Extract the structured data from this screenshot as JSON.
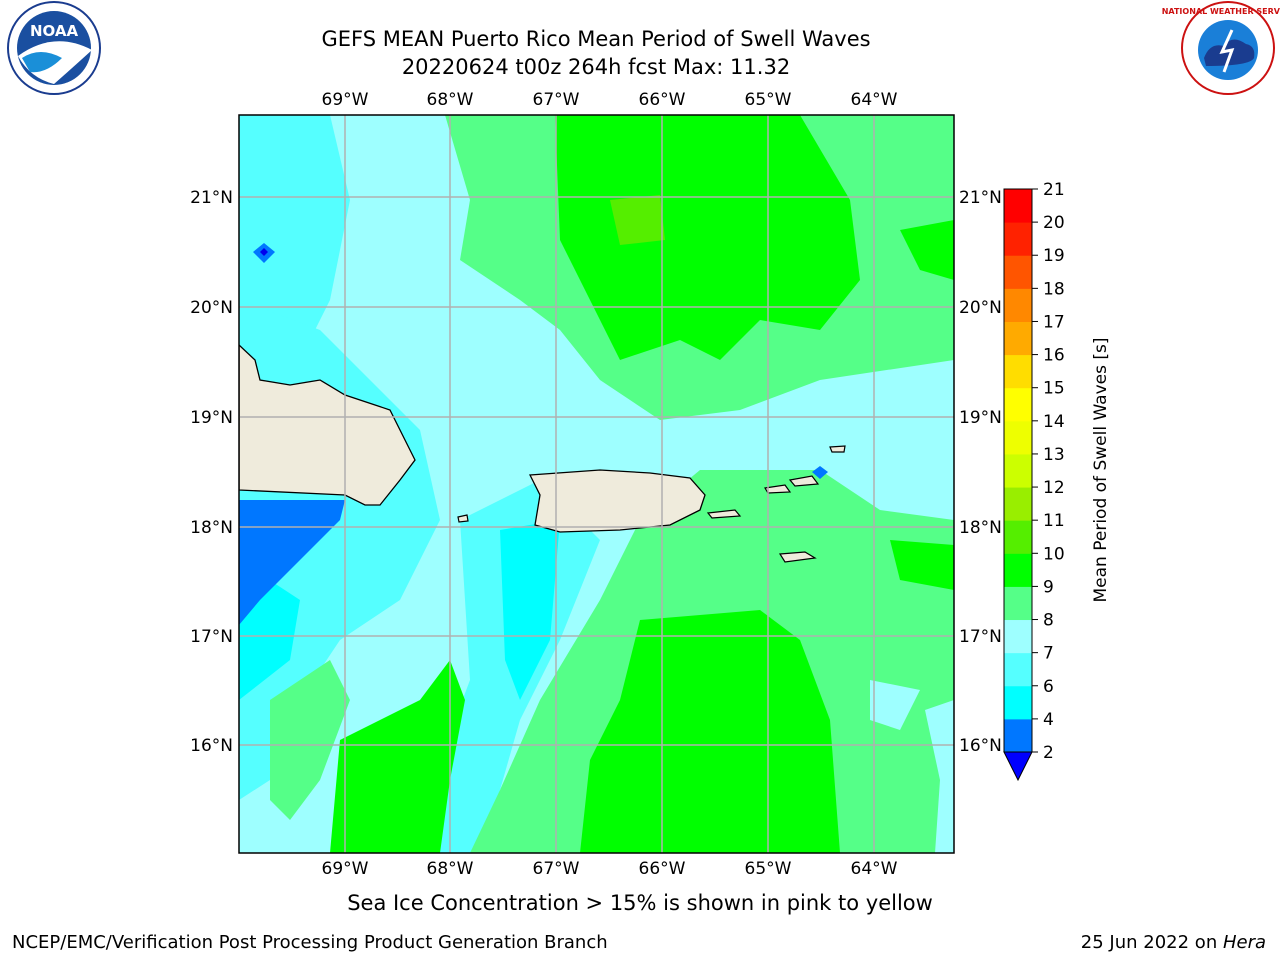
{
  "header": {
    "title_line1": "GEFS MEAN Puerto Rico Mean Period of Swell Waves",
    "title_line2": "20220624 t00z 264h fcst   Max: 11.32"
  },
  "logos": {
    "left": {
      "icon": "noaa-logo",
      "text": "NOAA",
      "ring_text": "NATIONAL OCEANIC AND ATMOSPHERIC ADMINISTRATION · U.S. DEPARTMENT OF COMMERCE"
    },
    "right": {
      "icon": "nws-logo",
      "ring_text": "NATIONAL WEATHER SERVICE"
    }
  },
  "map": {
    "lon_labels": [
      "69°W",
      "68°W",
      "67°W",
      "66°W",
      "65°W",
      "64°W"
    ],
    "lat_labels": [
      "21°N",
      "20°N",
      "19°N",
      "18°N",
      "17°N",
      "16°N"
    ],
    "colors": {
      "land": "#efebdc",
      "lt_cyan": "#9effff",
      "cyan": "#00ffff",
      "mid_cyan": "#55ffff",
      "lt_green": "#55ff88",
      "green": "#00ff00",
      "yellow_green": "#55ee00",
      "blue": "#0077ff",
      "dark_blue": "#0000ee",
      "grid": "#b0b0b0"
    }
  },
  "colorbar": {
    "label": "Mean Period of Swell Waves [s]",
    "ticks": [
      "2",
      "4",
      "6",
      "7",
      "8",
      "9",
      "10",
      "11",
      "12",
      "13",
      "14",
      "15",
      "16",
      "17",
      "18",
      "19",
      "20",
      "21"
    ],
    "colors": [
      "#0000ff",
      "#0077ff",
      "#00ffff",
      "#55ffff",
      "#9effff",
      "#55ff88",
      "#00ff00",
      "#55ee00",
      "#99ee00",
      "#ccff00",
      "#eeff00",
      "#ffff00",
      "#ffdd00",
      "#ffaa00",
      "#ff8800",
      "#ff5500",
      "#ff2200",
      "#ff0000"
    ],
    "under_color": "#0000ff"
  },
  "subtitle": "Sea Ice Concentration > 15% is shown in pink to yellow",
  "footer": {
    "left": "NCEP/EMC/Verification Post Processing Product Generation Branch",
    "right_date": "25 Jun 2022 on ",
    "right_host": "Hera"
  }
}
